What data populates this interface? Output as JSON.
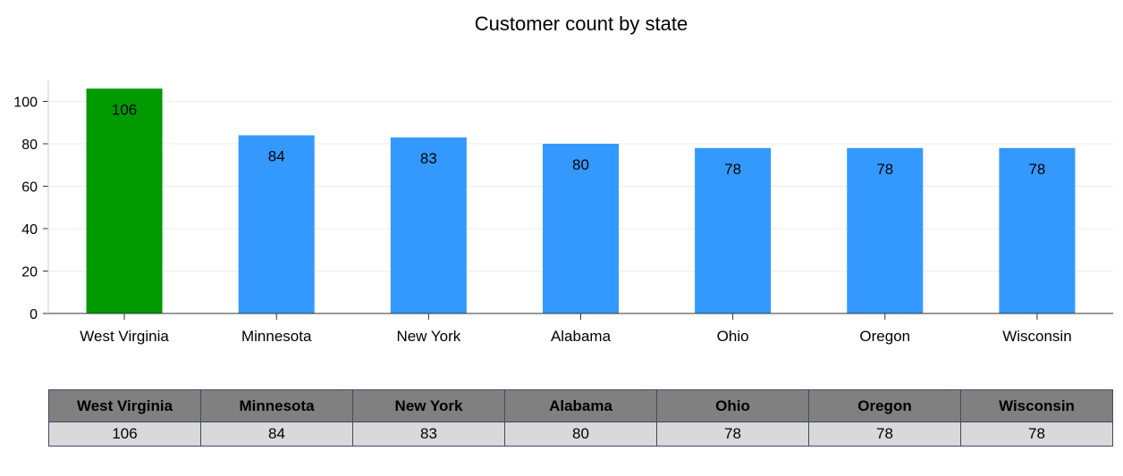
{
  "chart_data": {
    "type": "bar",
    "title": "Customer count by state",
    "categories": [
      "West Virginia",
      "Minnesota",
      "New York",
      "Alabama",
      "Ohio",
      "Oregon",
      "Wisconsin"
    ],
    "values": [
      106,
      84,
      83,
      80,
      78,
      78,
      78
    ],
    "yticks": [
      0,
      20,
      40,
      60,
      80,
      100
    ],
    "ylim": [
      0,
      110
    ],
    "grid": true,
    "legend": "none",
    "data_labels": true,
    "colors": {
      "highlight": "#009900",
      "default": "#3399ff",
      "gridline": "#ececec",
      "axis": "#333333"
    }
  },
  "table": {
    "headers": [
      "West Virginia",
      "Minnesota",
      "New York",
      "Alabama",
      "Ohio",
      "Oregon",
      "Wisconsin"
    ],
    "values": [
      "106",
      "84",
      "83",
      "80",
      "78",
      "78",
      "78"
    ]
  }
}
